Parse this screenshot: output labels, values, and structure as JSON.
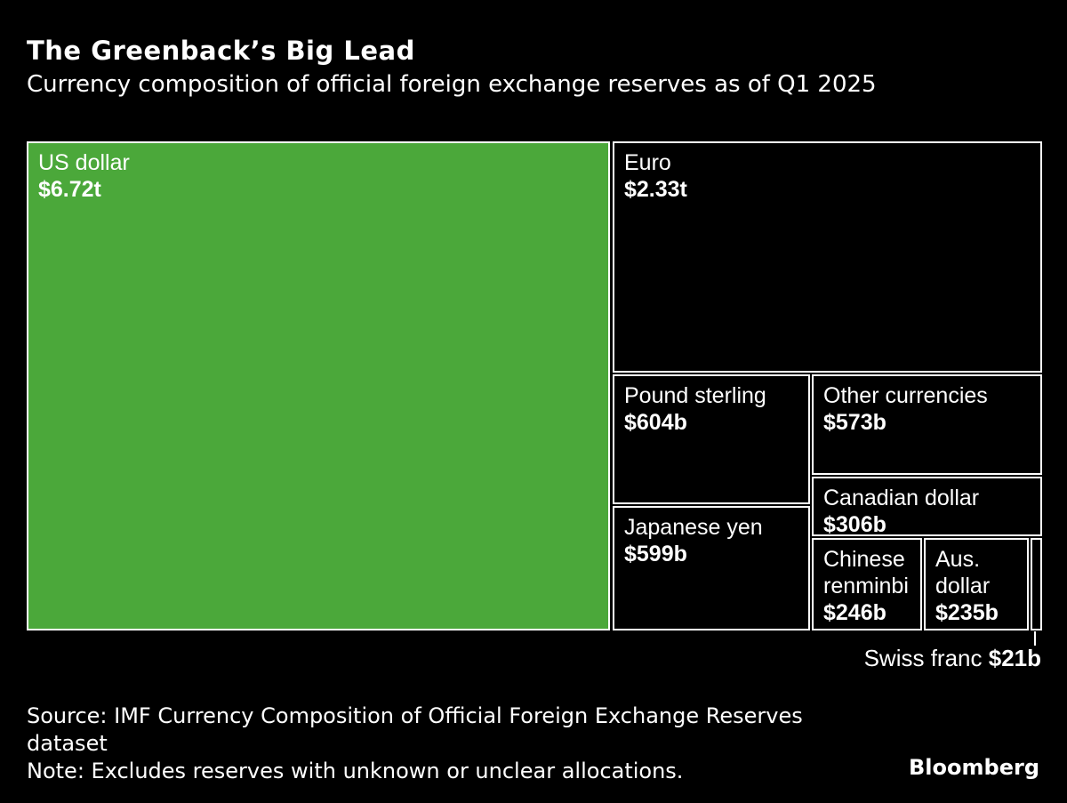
{
  "header": {
    "title": "The Greenback’s Big Lead",
    "subtitle": "Currency composition of official foreign exchange reserves as of Q1 2025"
  },
  "chart_data": {
    "type": "treemap",
    "title": "The Greenback’s Big Lead",
    "subtitle": "Currency composition of official foreign exchange reserves as of Q1 2025",
    "unit": "US dollars",
    "items": [
      {
        "label": "US dollar",
        "value_label": "$6.72t",
        "value_billions": 6720,
        "color": "#4BA83A"
      },
      {
        "label": "Euro",
        "value_label": "$2.33t",
        "value_billions": 2330,
        "color": "#000000"
      },
      {
        "label": "Pound sterling",
        "value_label": "$604b",
        "value_billions": 604,
        "color": "#000000"
      },
      {
        "label": "Japanese yen",
        "value_label": "$599b",
        "value_billions": 599,
        "color": "#000000"
      },
      {
        "label": "Other currencies",
        "value_label": "$573b",
        "value_billions": 573,
        "color": "#000000"
      },
      {
        "label": "Canadian dollar",
        "value_label": "$306b",
        "value_billions": 306,
        "color": "#000000"
      },
      {
        "label": "Chinese renminbi",
        "value_label": "$246b",
        "value_billions": 246,
        "color": "#000000"
      },
      {
        "label": "Aus. dollar",
        "value_label": "$235b",
        "value_billions": 235,
        "color": "#000000"
      },
      {
        "label": "Swiss franc",
        "value_label": "$21b",
        "value_billions": 21,
        "color": "#000000"
      }
    ],
    "layout_hints": {
      "legend": "none",
      "grid": "off",
      "tile_border_color": "#FFFFFF",
      "background": "#000000"
    }
  },
  "footer": {
    "source": "Source: IMF Currency Composition of Official Foreign Exchange Reserves dataset",
    "note": "Note: Excludes reserves with unknown or unclear allocations.",
    "brand": "Bloomberg"
  },
  "colors": {
    "background": "#000000",
    "accent_green": "#4BA83A",
    "box_border": "#FFFFFF",
    "text": "#FFFFFF"
  }
}
